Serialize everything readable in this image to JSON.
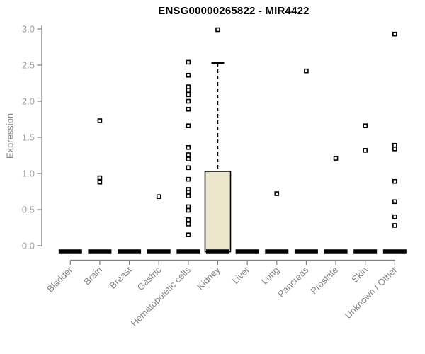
{
  "chart_data": {
    "type": "boxplot",
    "title": "ENSG00000265822 - MIR4422",
    "ylabel": "Expression",
    "xlabel": "",
    "ylim": [
      0.0,
      3.0
    ],
    "yticks": [
      0.0,
      0.5,
      1.0,
      1.5,
      2.0,
      2.5,
      3.0
    ],
    "grid": false,
    "legend": false,
    "categories": [
      "Bladder",
      "Brain",
      "Breast",
      "Gastric",
      "Hematopoietic cells",
      "Kidney",
      "Liver",
      "Lung",
      "Pancreas",
      "Prostate",
      "Skin",
      "Unknown / Other"
    ],
    "boxes": [
      {
        "category": "Bladder",
        "median": 0,
        "q1": 0,
        "q3": 0,
        "whisker_low": 0,
        "whisker_high": 0,
        "outliers": []
      },
      {
        "category": "Brain",
        "median": 0,
        "q1": 0,
        "q3": 0,
        "whisker_low": 0,
        "whisker_high": 0,
        "outliers": [
          1.73,
          0.94,
          0.88
        ]
      },
      {
        "category": "Breast",
        "median": 0,
        "q1": 0,
        "q3": 0,
        "whisker_low": 0,
        "whisker_high": 0,
        "outliers": []
      },
      {
        "category": "Gastric",
        "median": 0,
        "q1": 0,
        "q3": 0,
        "whisker_low": 0,
        "whisker_high": 0,
        "outliers": [
          0.68
        ]
      },
      {
        "category": "Hematopoietic cells",
        "median": 0,
        "q1": 0,
        "q3": 0,
        "whisker_low": 0,
        "whisker_high": 0,
        "outliers": [
          2.54,
          2.36,
          2.2,
          2.15,
          2.09,
          2.0,
          1.89,
          1.66,
          1.36,
          1.26,
          1.2,
          1.08,
          0.92,
          0.78,
          0.74,
          0.69,
          0.54,
          0.49,
          0.36,
          0.3,
          0.15
        ]
      },
      {
        "category": "Kidney",
        "median": 0,
        "q1": 0,
        "q3": 1.03,
        "whisker_low": 0,
        "whisker_high": 2.53,
        "outliers": [
          2.99
        ]
      },
      {
        "category": "Liver",
        "median": 0,
        "q1": 0,
        "q3": 0,
        "whisker_low": 0,
        "whisker_high": 0,
        "outliers": []
      },
      {
        "category": "Lung",
        "median": 0,
        "q1": 0,
        "q3": 0,
        "whisker_low": 0,
        "whisker_high": 0,
        "outliers": [
          0.72
        ]
      },
      {
        "category": "Pancreas",
        "median": 0,
        "q1": 0,
        "q3": 0,
        "whisker_low": 0,
        "whisker_high": 0,
        "outliers": [
          2.42
        ]
      },
      {
        "category": "Prostate",
        "median": 0,
        "q1": 0,
        "q3": 0,
        "whisker_low": 0,
        "whisker_high": 0,
        "outliers": [
          1.21
        ]
      },
      {
        "category": "Skin",
        "median": 0,
        "q1": 0,
        "q3": 0,
        "whisker_low": 0,
        "whisker_high": 0,
        "outliers": [
          1.66,
          1.32
        ]
      },
      {
        "category": "Unknown / Other",
        "median": 0,
        "q1": 0,
        "q3": 0,
        "whisker_low": 0,
        "whisker_high": 0,
        "outliers": [
          2.93,
          1.39,
          1.34,
          0.89,
          0.61,
          0.4,
          0.28
        ]
      }
    ],
    "colors": {
      "box_fill": "#ece6cc",
      "box_stroke": "#000000",
      "median_bar": "#000000",
      "point_stroke": "#000000",
      "point_fill": "#ffffff",
      "axis_line": "#808080",
      "x_tick_label": "#848484",
      "y_tick_label": "#9aa0a6",
      "title": "#000000",
      "background": "#ffffff"
    }
  }
}
